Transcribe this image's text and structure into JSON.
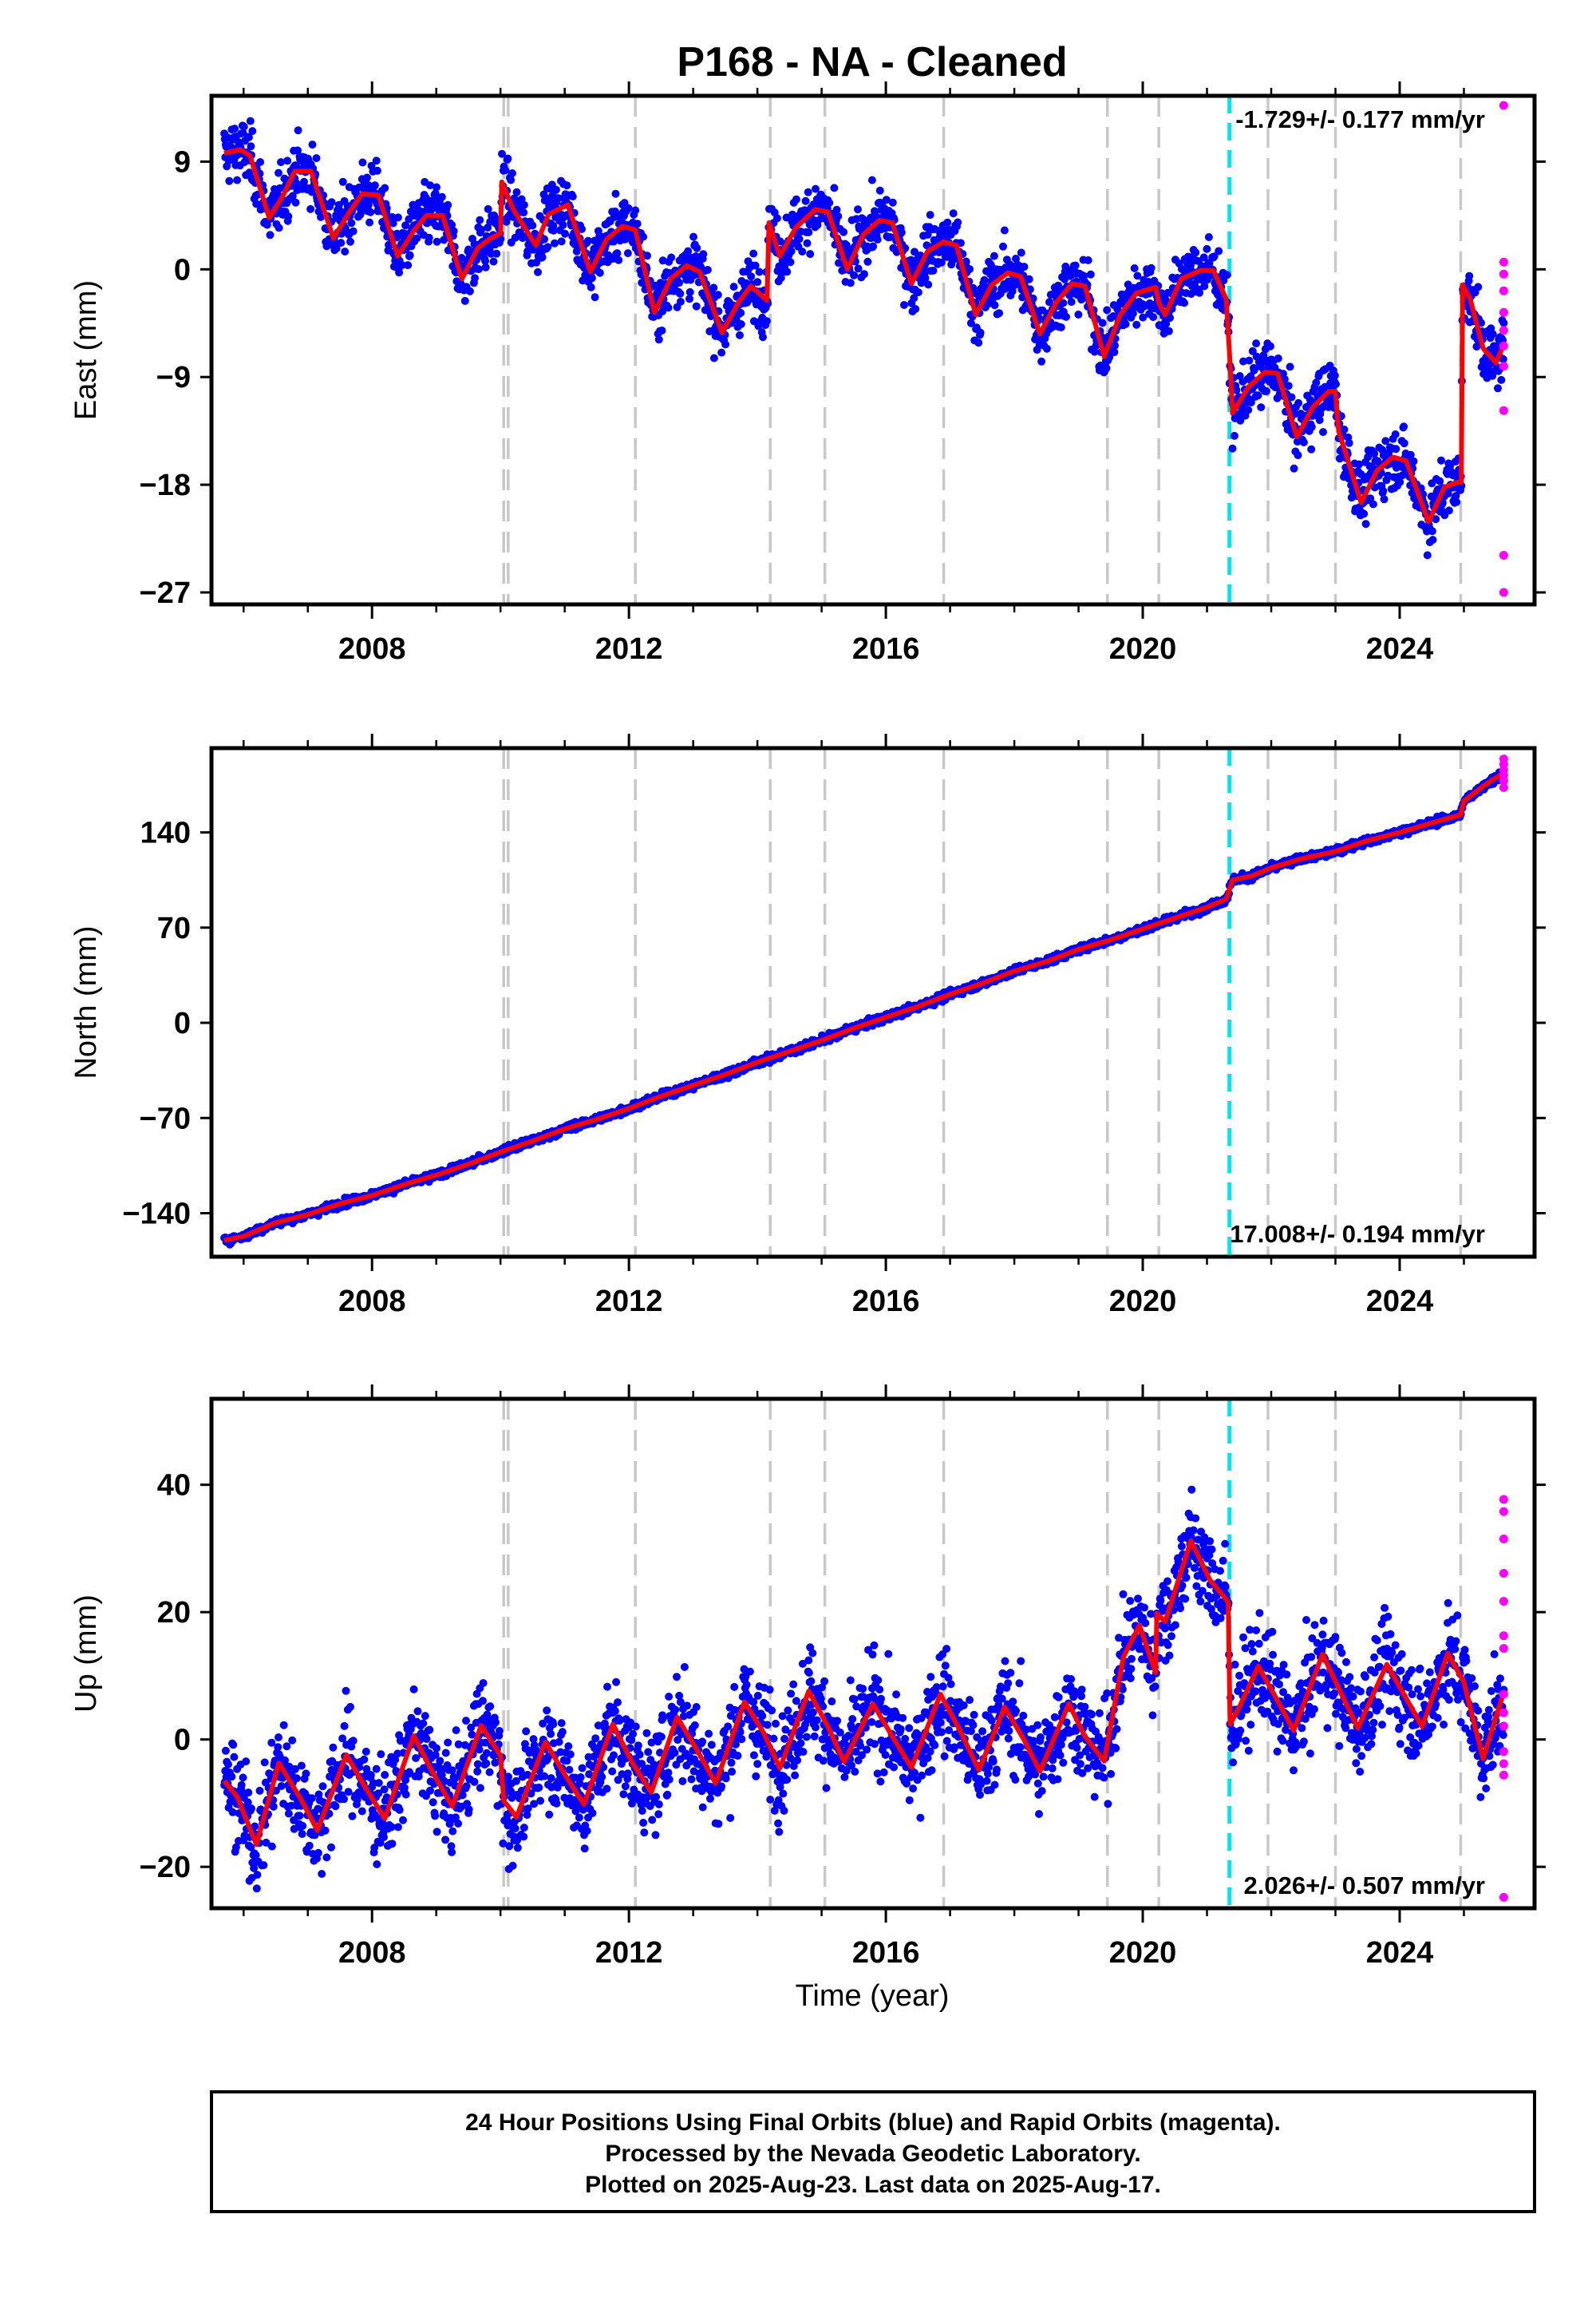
{
  "colors": {
    "final_orbits": "#0000ff",
    "rapid_orbits": "#ff00ff",
    "model_fit": "#ff0000",
    "equipment_change": "#c8c8c8",
    "earthquake": "#00e5ee"
  },
  "chart_data": {
    "type": "scatter",
    "title": "P168  - NA - Cleaned",
    "xlabel": "Time (year)",
    "xlim": [
      2005.5,
      2026.1
    ],
    "x_ticks": [
      "2008",
      "2012",
      "2016",
      "2020",
      "2024"
    ],
    "step_lines_equipment": [
      2010.05,
      2010.12,
      2012.1,
      2014.2,
      2015.05,
      2016.9,
      2019.45,
      2020.25,
      2021.95,
      2023.0,
      2024.95
    ],
    "step_lines_earthquake": [
      2021.35
    ],
    "panels": [
      {
        "component": "East",
        "ylabel": "East (mm)",
        "ylim": [
          -28,
          14.5
        ],
        "y_ticks": [
          "9",
          "0",
          "−9",
          "−18",
          "−27"
        ],
        "rate_label": "-1.729+/- 0.177 mm/yr",
        "rate_position": "top-right",
        "fit_points": [
          [
            2005.7,
            9.7
          ],
          [
            2005.95,
            10.0
          ],
          [
            2006.1,
            9.5
          ],
          [
            2006.4,
            4.3
          ],
          [
            2006.6,
            6.0
          ],
          [
            2006.8,
            8.2
          ],
          [
            2007.05,
            8.2
          ],
          [
            2007.4,
            2.6
          ],
          [
            2007.65,
            4.8
          ],
          [
            2007.85,
            6.3
          ],
          [
            2008.1,
            6.2
          ],
          [
            2008.4,
            1.1
          ],
          [
            2008.65,
            3.2
          ],
          [
            2008.85,
            4.5
          ],
          [
            2009.1,
            4.5
          ],
          [
            2009.4,
            -0.8
          ],
          [
            2009.65,
            1.8
          ],
          [
            2009.85,
            2.6
          ],
          [
            2010.0,
            3.0
          ],
          [
            2010.02,
            7.3
          ],
          [
            2010.2,
            5.0
          ],
          [
            2010.55,
            2.0
          ],
          [
            2010.75,
            4.6
          ],
          [
            2011.05,
            5.4
          ],
          [
            2011.4,
            -0.2
          ],
          [
            2011.65,
            2.5
          ],
          [
            2011.9,
            3.6
          ],
          [
            2012.1,
            3.3
          ],
          [
            2012.4,
            -3.6
          ],
          [
            2012.65,
            -0.8
          ],
          [
            2012.9,
            0.3
          ],
          [
            2013.1,
            -0.2
          ],
          [
            2013.45,
            -5.3
          ],
          [
            2013.7,
            -2.8
          ],
          [
            2013.9,
            -1.4
          ],
          [
            2014.15,
            -2.6
          ],
          [
            2014.18,
            3.9
          ],
          [
            2014.35,
            1.1
          ],
          [
            2014.6,
            3.5
          ],
          [
            2014.9,
            5.0
          ],
          [
            2015.1,
            4.8
          ],
          [
            2015.4,
            0.0
          ],
          [
            2015.65,
            2.9
          ],
          [
            2015.9,
            4.1
          ],
          [
            2016.1,
            3.9
          ],
          [
            2016.4,
            -1.2
          ],
          [
            2016.65,
            1.5
          ],
          [
            2016.9,
            2.3
          ],
          [
            2017.1,
            2.0
          ],
          [
            2017.4,
            -3.8
          ],
          [
            2017.65,
            -1.3
          ],
          [
            2017.9,
            -0.3
          ],
          [
            2018.1,
            -0.6
          ],
          [
            2018.4,
            -5.4
          ],
          [
            2018.65,
            -2.8
          ],
          [
            2018.9,
            -1.2
          ],
          [
            2019.1,
            -1.4
          ],
          [
            2019.4,
            -7.3
          ],
          [
            2019.65,
            -3.8
          ],
          [
            2019.9,
            -2.0
          ],
          [
            2020.2,
            -1.5
          ],
          [
            2020.25,
            -2.8
          ],
          [
            2020.35,
            -3.8
          ],
          [
            2020.6,
            -0.8
          ],
          [
            2020.9,
            -0.1
          ],
          [
            2021.1,
            -0.1
          ],
          [
            2021.3,
            -2.5
          ],
          [
            2021.35,
            -7.0
          ],
          [
            2021.4,
            -12.0
          ],
          [
            2021.65,
            -9.8
          ],
          [
            2021.9,
            -8.6
          ],
          [
            2022.1,
            -8.7
          ],
          [
            2022.4,
            -14.0
          ],
          [
            2022.65,
            -11.5
          ],
          [
            2022.9,
            -10.2
          ],
          [
            2023.0,
            -10.2
          ],
          [
            2023.05,
            -13.5
          ],
          [
            2023.4,
            -19.5
          ],
          [
            2023.65,
            -16.8
          ],
          [
            2023.9,
            -15.7
          ],
          [
            2024.1,
            -16.0
          ],
          [
            2024.45,
            -21.1
          ],
          [
            2024.7,
            -18.2
          ],
          [
            2024.9,
            -17.8
          ],
          [
            2024.96,
            -17.8
          ],
          [
            2024.98,
            -1.3
          ],
          [
            2025.1,
            -2.5
          ],
          [
            2025.3,
            -6.6
          ],
          [
            2025.5,
            -7.8
          ],
          [
            2025.62,
            -6.3
          ]
        ],
        "rapid_points": [
          [
            2025.62,
            13.7
          ],
          [
            2025.62,
            0.6
          ],
          [
            2025.62,
            -0.4
          ],
          [
            2025.62,
            -1.8
          ],
          [
            2025.62,
            -3.6
          ],
          [
            2025.62,
            -5.1
          ],
          [
            2025.62,
            -6.4
          ],
          [
            2025.62,
            -8.1
          ],
          [
            2025.62,
            -11.8
          ],
          [
            2025.62,
            -23.9
          ],
          [
            2025.62,
            -27.0
          ]
        ]
      },
      {
        "component": "North",
        "ylabel": "North (mm)",
        "ylim": [
          -172,
          202
        ],
        "y_ticks": [
          "140",
          "70",
          "0",
          "−70",
          "−140"
        ],
        "rate_label": "17.008+/- 0.194 mm/yr",
        "rate_position": "bottom-right",
        "fit_points": [
          [
            2005.7,
            -160
          ],
          [
            2006.0,
            -157
          ],
          [
            2006.5,
            -147
          ],
          [
            2007.0,
            -141
          ],
          [
            2007.5,
            -133
          ],
          [
            2008.0,
            -127
          ],
          [
            2008.5,
            -119
          ],
          [
            2009.0,
            -112
          ],
          [
            2009.5,
            -104
          ],
          [
            2010.0,
            -95
          ],
          [
            2010.5,
            -87
          ],
          [
            2011.0,
            -78
          ],
          [
            2011.5,
            -71
          ],
          [
            2012.0,
            -63
          ],
          [
            2012.5,
            -54
          ],
          [
            2013.0,
            -46
          ],
          [
            2013.5,
            -38
          ],
          [
            2014.0,
            -29
          ],
          [
            2014.5,
            -21
          ],
          [
            2015.0,
            -13
          ],
          [
            2015.5,
            -4
          ],
          [
            2016.0,
            4
          ],
          [
            2016.5,
            12
          ],
          [
            2017.0,
            21
          ],
          [
            2017.5,
            29
          ],
          [
            2018.0,
            38
          ],
          [
            2018.5,
            45
          ],
          [
            2019.0,
            54
          ],
          [
            2019.5,
            61
          ],
          [
            2020.0,
            69
          ],
          [
            2020.5,
            77
          ],
          [
            2021.0,
            85
          ],
          [
            2021.3,
            91
          ],
          [
            2021.4,
            105
          ],
          [
            2021.7,
            108
          ],
          [
            2022.0,
            114
          ],
          [
            2022.5,
            121
          ],
          [
            2023.0,
            126
          ],
          [
            2023.5,
            134
          ],
          [
            2024.0,
            140
          ],
          [
            2024.5,
            147
          ],
          [
            2024.95,
            153
          ],
          [
            2025.0,
            163
          ],
          [
            2025.3,
            174
          ],
          [
            2025.62,
            184
          ]
        ],
        "rapid_points": [
          [
            2025.62,
            194
          ],
          [
            2025.62,
            190
          ],
          [
            2025.62,
            186
          ],
          [
            2025.62,
            182
          ],
          [
            2025.62,
            178
          ],
          [
            2025.62,
            173
          ]
        ]
      },
      {
        "component": "Up",
        "ylabel": "Up (mm)",
        "ylim": [
          -26.5,
          53.5
        ],
        "y_ticks": [
          "40",
          "20",
          "0",
          "−20"
        ],
        "rate_label": "2.026+/- 0.507 mm/yr",
        "rate_position": "bottom-right",
        "fit_points": [
          [
            2005.7,
            -6.5
          ],
          [
            2005.9,
            -9.0
          ],
          [
            2006.2,
            -16.5
          ],
          [
            2006.55,
            -3.7
          ],
          [
            2006.9,
            -9.5
          ],
          [
            2007.15,
            -14.3
          ],
          [
            2007.6,
            -2.4
          ],
          [
            2007.9,
            -7.6
          ],
          [
            2008.2,
            -12.4
          ],
          [
            2008.65,
            0.6
          ],
          [
            2008.95,
            -5.3
          ],
          [
            2009.25,
            -10.5
          ],
          [
            2009.7,
            2.2
          ],
          [
            2010.0,
            -2.5
          ],
          [
            2010.05,
            -9.6
          ],
          [
            2010.25,
            -12.2
          ],
          [
            2010.7,
            -0.4
          ],
          [
            2011.0,
            -5.5
          ],
          [
            2011.3,
            -10.2
          ],
          [
            2011.75,
            2.4
          ],
          [
            2012.05,
            -3.6
          ],
          [
            2012.35,
            -8.3
          ],
          [
            2012.75,
            3.5
          ],
          [
            2013.05,
            -1.5
          ],
          [
            2013.35,
            -6.9
          ],
          [
            2013.8,
            5.9
          ],
          [
            2014.1,
            1.0
          ],
          [
            2014.35,
            -4.5
          ],
          [
            2014.8,
            7.6
          ],
          [
            2015.1,
            2.0
          ],
          [
            2015.35,
            -3.5
          ],
          [
            2015.8,
            5.6
          ],
          [
            2016.1,
            0.5
          ],
          [
            2016.4,
            -4.4
          ],
          [
            2016.85,
            7.1
          ],
          [
            2017.15,
            1.5
          ],
          [
            2017.45,
            -4.8
          ],
          [
            2017.85,
            5.1
          ],
          [
            2018.15,
            0.0
          ],
          [
            2018.4,
            -5.0
          ],
          [
            2018.85,
            5.6
          ],
          [
            2019.1,
            0.5
          ],
          [
            2019.4,
            -3.4
          ],
          [
            2019.7,
            13.0
          ],
          [
            2019.95,
            17.9
          ],
          [
            2020.2,
            10.5
          ],
          [
            2020.22,
            19.8
          ],
          [
            2020.35,
            18.5
          ],
          [
            2020.75,
            31.2
          ],
          [
            2021.05,
            25.0
          ],
          [
            2021.3,
            22.0
          ],
          [
            2021.33,
            21.6
          ],
          [
            2021.36,
            2.4
          ],
          [
            2021.5,
            5.0
          ],
          [
            2021.8,
            11.5
          ],
          [
            2022.05,
            7.0
          ],
          [
            2022.35,
            1.4
          ],
          [
            2022.8,
            13.4
          ],
          [
            2023.1,
            7.0
          ],
          [
            2023.35,
            1.8
          ],
          [
            2023.8,
            11.8
          ],
          [
            2024.1,
            6.5
          ],
          [
            2024.35,
            2.0
          ],
          [
            2024.75,
            13.5
          ],
          [
            2025.0,
            9.0
          ],
          [
            2025.3,
            -3.0
          ],
          [
            2025.62,
            7.4
          ]
        ],
        "rapid_points": [
          [
            2025.62,
            37.7
          ],
          [
            2025.62,
            35.8
          ],
          [
            2025.62,
            31.5
          ],
          [
            2025.62,
            26.1
          ],
          [
            2025.62,
            21.7
          ],
          [
            2025.62,
            16.3
          ],
          [
            2025.62,
            14.3
          ],
          [
            2025.62,
            7.1
          ],
          [
            2025.62,
            4.2
          ],
          [
            2025.62,
            2.1
          ],
          [
            2025.62,
            -1.9
          ],
          [
            2025.62,
            -3.8
          ],
          [
            2025.62,
            -5.6
          ],
          [
            2025.62,
            -24.8
          ]
        ]
      }
    ]
  },
  "footer": {
    "line1": "24 Hour Positions Using Final Orbits (blue) and Rapid Orbits (magenta).",
    "line2": "Processed by the Nevada Geodetic Laboratory.",
    "line3": "Plotted on 2025-Aug-23. Last data on 2025-Aug-17."
  }
}
